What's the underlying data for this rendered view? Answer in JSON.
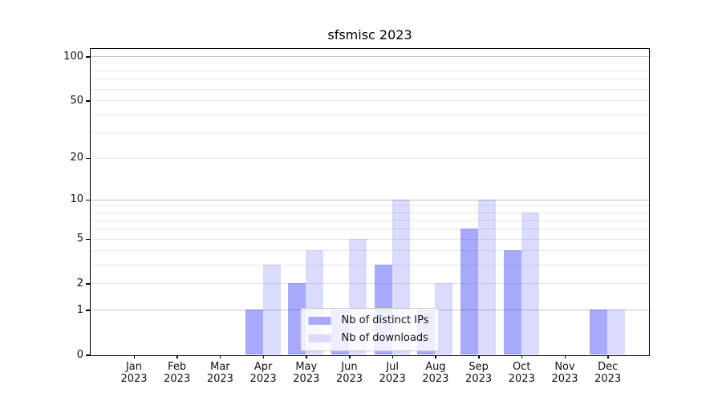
{
  "figure": {
    "title": "sfsmisc 2023",
    "background_color": "#ffffff"
  },
  "chart_data": {
    "type": "bar",
    "title": "sfsmisc 2023",
    "xlabel": "",
    "ylabel": "",
    "categories": [
      {
        "month": "Jan",
        "year": "2023"
      },
      {
        "month": "Feb",
        "year": "2023"
      },
      {
        "month": "Mar",
        "year": "2023"
      },
      {
        "month": "Apr",
        "year": "2023"
      },
      {
        "month": "May",
        "year": "2023"
      },
      {
        "month": "Jun",
        "year": "2023"
      },
      {
        "month": "Jul",
        "year": "2023"
      },
      {
        "month": "Aug",
        "year": "2023"
      },
      {
        "month": "Sep",
        "year": "2023"
      },
      {
        "month": "Oct",
        "year": "2023"
      },
      {
        "month": "Nov",
        "year": "2023"
      },
      {
        "month": "Dec",
        "year": "2023"
      }
    ],
    "series": [
      {
        "key": "distinct-ips",
        "name": "Nb of distinct IPs",
        "color": "rgba(10, 10, 245, 0.35)",
        "color_composite_hex": "#aaa9f9",
        "values": [
          0,
          0,
          0,
          1,
          2,
          1,
          3,
          1,
          6,
          4,
          0,
          1
        ]
      },
      {
        "key": "downloads",
        "name": "Nb of downloads",
        "color": "rgba(10, 10, 245, 0.145)",
        "color_composite_hex": "#dcdbfa",
        "values": [
          0,
          0,
          0,
          3,
          4,
          5,
          10,
          2,
          10,
          8,
          0,
          1
        ]
      }
    ],
    "y_axis": {
      "scale": "log1p",
      "tick_values": [
        0,
        1,
        2,
        5,
        10,
        20,
        50,
        100
      ],
      "major_gridline_values": [
        1,
        10,
        100
      ],
      "minor_gridline_values": [
        2,
        3,
        4,
        5,
        6,
        7,
        8,
        9,
        20,
        30,
        40,
        50,
        60,
        70,
        80,
        90
      ],
      "range_max_value": 100
    },
    "grid": true,
    "legend_position": "lower center"
  }
}
